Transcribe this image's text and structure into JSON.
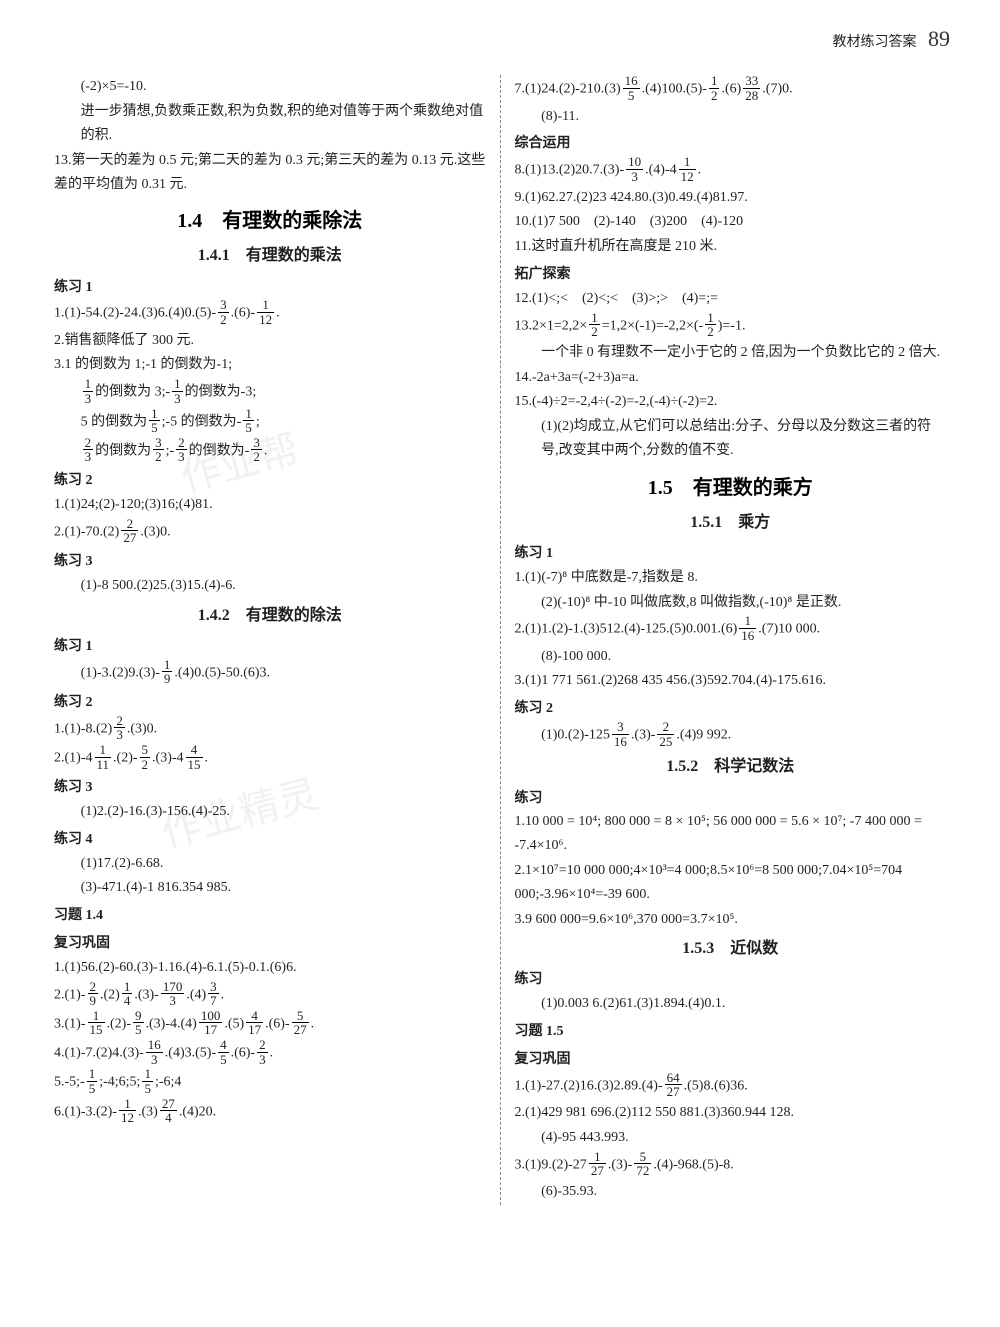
{
  "header": {
    "label": "教材练习答案",
    "page": "89"
  },
  "colors": {
    "text": "#231f20",
    "heading": "#000",
    "divider": "#888",
    "bg": "#ffffff"
  },
  "fonts": {
    "body_pt": 14,
    "section_pt": 20,
    "subsection_pt": 16
  },
  "left": {
    "pre": [
      "(-2)×5=-10.",
      "进一步猜想,负数乘正数,积为负数,积的绝对值等于两个乘数绝对值的积.",
      "13.第一天的差为 0.5 元;第二天的差为 0.3 元;第三天的差为 0.13 元.这些差的平均值为 0.31 元."
    ],
    "sec14": "1.4　有理数的乘除法",
    "sec141": "1.4.1　有理数的乘法",
    "lx1": "练习 1",
    "lx1_1a": "1.(1)-54.(2)-24.(3)6.(4)0.(5)-",
    "lx1_1b": ".(6)-",
    "lx1_1c": ".",
    "lx1_2": "2.销售额降低了 300 元.",
    "lx1_3a": "3.1 的倒数为 1;-1 的倒数为-1;",
    "lx1_3b_a": "的倒数为 3;-",
    "lx1_3b_b": "的倒数为-3;",
    "lx1_3c_a": "5 的倒数为",
    "lx1_3c_b": ";-5 的倒数为-",
    "lx1_3c_c": ";",
    "lx1_3d_a": "的倒数为",
    "lx1_3d_b": ";-",
    "lx1_3d_c": "的倒数为-",
    "lx1_3d_d": ".",
    "lx2": "练习 2",
    "lx2_1": "1.(1)24;(2)-120;(3)16;(4)81.",
    "lx2_2a": "2.(1)-70.(2)",
    "lx2_2b": ".(3)0.",
    "lx3": "练习 3",
    "lx3_1": "(1)-8 500.(2)25.(3)15.(4)-6.",
    "sec142": "1.4.2　有理数的除法",
    "d_lx1": "练习 1",
    "d_lx1_1a": "(1)-3.(2)9.(3)-",
    "d_lx1_1b": ".(4)0.(5)-50.(6)3.",
    "d_lx2": "练习 2",
    "d_lx2_1a": "1.(1)-8.(2)",
    "d_lx2_1b": ".(3)0.",
    "d_lx2_2a": "2.(1)-4",
    "d_lx2_2b": ".(2)-",
    "d_lx2_2c": ".(3)-4",
    "d_lx2_2d": ".",
    "d_lx3": "练习 3",
    "d_lx3_1": "(1)2.(2)-16.(3)-156.(4)-25.",
    "d_lx4": "练习 4",
    "d_lx4_1": "(1)17.(2)-6.68.",
    "d_lx4_2": "(3)-471.(4)-1 816.354 985.",
    "xt14": "习题 1.4",
    "fxgg": "复习巩固",
    "f1": "1.(1)56.(2)-60.(3)-1.16.(4)-6.1.(5)-0.1.(6)6.",
    "f2a": "2.(1)-",
    "f2b": ".(2)",
    "f2c": ".(3)-",
    "f2d": ".(4)",
    "f2e": ".",
    "f3a": "3.(1)-",
    "f3b": ".(2)-",
    "f3c": ".(3)-4.(4)",
    "f3d": ".(5)",
    "f3e": ".(6)-",
    "f3f": ".",
    "f4a": "4.(1)-7.(2)4.(3)-",
    "f4b": ".(4)3.(5)-",
    "f4c": ".(6)-",
    "f4d": ".",
    "f5a": "5.-5;-",
    "f5b": ";-4;6;5;",
    "f5c": ";-6;4",
    "f6a": "6.(1)-3.(2)-",
    "f6b": ".(3)",
    "f6c": ".(4)20."
  },
  "right": {
    "r7a": "7.(1)24.(2)-210.(3)",
    "r7b": ".(4)100.(5)-",
    "r7c": ".(6)",
    "r7d": ".(7)0.",
    "r7e": "(8)-11.",
    "zhyy": "综合运用",
    "r8a": "8.(1)13.(2)20.7.(3)-",
    "r8b": ".(4)-4",
    "r8c": ".",
    "r9": "9.(1)62.27.(2)23 424.80.(3)0.49.(4)81.97.",
    "r10": "10.(1)7 500　(2)-140　(3)200　(4)-120",
    "r11": "11.这时直升机所在高度是 210 米.",
    "tgts": "拓广探索",
    "r12": "12.(1)<;<　(2)<;<　(3)>;>　(4)=;=",
    "r13a": "13.2×1=2,2×",
    "r13b": "=1,2×(-1)=-2,2×",
    "r13bm": "(-",
    "r13c": ")=-1.",
    "r13d": "一个非 0 有理数不一定小于它的 2 倍,因为一个负数比它的 2 倍大.",
    "r14": "14.-2a+3a=(-2+3)a=a.",
    "r15a": "15.(-4)÷2=-2,4÷(-2)=-2,(-4)÷(-2)=2.",
    "r15b": "(1)(2)均成立,从它们可以总结出:分子、分母以及分数这三者的符号,改变其中两个,分数的值不变.",
    "sec15": "1.5　有理数的乘方",
    "sec151": "1.5.1　乘方",
    "p_lx1": "练习 1",
    "p1": "1.(1)(-7)⁸ 中底数是-7,指数是 8.",
    "p1b": "(2)(-10)⁸ 中-10 叫做底数,8 叫做指数,(-10)⁸ 是正数.",
    "p2a": "2.(1)1.(2)-1.(3)512.(4)-125.(5)0.001.(6)",
    "p2b": ".(7)10 000.",
    "p2c": "(8)-100 000.",
    "p3": "3.(1)1 771 561.(2)268 435 456.(3)592.704.(4)-175.616.",
    "p_lx2": "练习 2",
    "p_lx2_1a": "(1)0.(2)-125",
    "p_lx2_1b": ".(3)-",
    "p_lx2_1c": ".(4)9 992.",
    "sec152": "1.5.2　科学记数法",
    "k_lx": "练习",
    "k1": "1.10 000 = 10⁴; 800 000 = 8 × 10⁵; 56 000 000 = 5.6 × 10⁷; -7 400 000 = -7.4×10⁶.",
    "k2": "2.1×10⁷=10 000 000;4×10³=4 000;8.5×10⁶=8 500 000;7.04×10⁵=704 000;-3.96×10⁴=-39 600.",
    "k3": "3.9 600 000=9.6×10⁶,370 000=3.7×10⁵.",
    "sec153": "1.5.3　近似数",
    "j_lx": "练习",
    "j1": "(1)0.003 6.(2)61.(3)1.894.(4)0.1.",
    "xt15": "习题 1.5",
    "fxgg2": "复习巩固",
    "jf1a": "1.(1)-27.(2)16.(3)2.89.(4)-",
    "jf1b": ".(5)8.(6)36.",
    "jf2": "2.(1)429 981 696.(2)112 550 881.(3)360.944 128.",
    "jf2b": "(4)-95 443.993.",
    "jf3a": "3.(1)9.(2)-27",
    "jf3b": ".(3)-",
    "jf3c": ".(4)-968.(5)-8.",
    "jf3d": "(6)-35.93."
  },
  "fracs": {
    "f3_2": {
      "n": "3",
      "d": "2"
    },
    "f1_12": {
      "n": "1",
      "d": "12"
    },
    "f1_3": {
      "n": "1",
      "d": "3"
    },
    "f1_5": {
      "n": "1",
      "d": "5"
    },
    "f2_3": {
      "n": "2",
      "d": "3"
    },
    "f2_27": {
      "n": "2",
      "d": "27"
    },
    "f1_9": {
      "n": "1",
      "d": "9"
    },
    "f1_11": {
      "n": "1",
      "d": "11"
    },
    "f5_2": {
      "n": "5",
      "d": "2"
    },
    "f4_15": {
      "n": "4",
      "d": "15"
    },
    "f2_9": {
      "n": "2",
      "d": "9"
    },
    "f1_4": {
      "n": "1",
      "d": "4"
    },
    "f170_3": {
      "n": "170",
      "d": "3"
    },
    "f3_7": {
      "n": "3",
      "d": "7"
    },
    "f1_15": {
      "n": "1",
      "d": "15"
    },
    "f9_5": {
      "n": "9",
      "d": "5"
    },
    "f100_17": {
      "n": "100",
      "d": "17"
    },
    "f4_17": {
      "n": "4",
      "d": "17"
    },
    "f5_27": {
      "n": "5",
      "d": "27"
    },
    "f16_3": {
      "n": "16",
      "d": "3"
    },
    "f4_5": {
      "n": "4",
      "d": "5"
    },
    "f27_4": {
      "n": "27",
      "d": "4"
    },
    "f16_5": {
      "n": "16",
      "d": "5"
    },
    "f1_2": {
      "n": "1",
      "d": "2"
    },
    "f33_28": {
      "n": "33",
      "d": "28"
    },
    "f10_3": {
      "n": "10",
      "d": "3"
    },
    "f1_16": {
      "n": "1",
      "d": "16"
    },
    "f3_16": {
      "n": "3",
      "d": "16"
    },
    "f2_25": {
      "n": "2",
      "d": "25"
    },
    "f64_27": {
      "n": "64",
      "d": "27"
    },
    "f1_27": {
      "n": "1",
      "d": "27"
    },
    "f5_72": {
      "n": "5",
      "d": "72"
    }
  }
}
